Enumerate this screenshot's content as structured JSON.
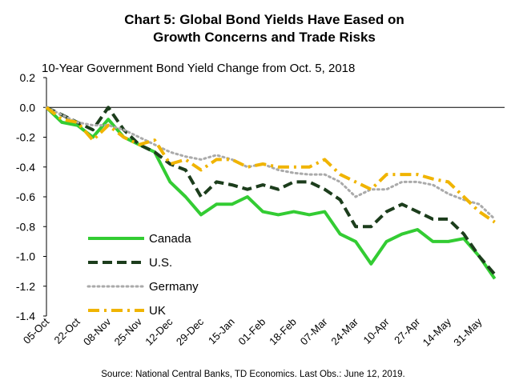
{
  "chart_data": {
    "type": "line",
    "title": [
      "Chart 5: Global Bond Yields Have Eased on",
      "Growth Concerns and Trade Risks"
    ],
    "subtitle": "10-Year Government Bond Yield Change from Oct. 5, 2018",
    "source": "Source: National Central Banks, TD Economics. Last Obs.: June 12, 2019.",
    "categories": [
      "05-Oct",
      null,
      "22-Oct",
      null,
      "08-Nov",
      null,
      "25-Nov",
      null,
      "12-Dec",
      null,
      "29-Dec",
      null,
      "15-Jan",
      null,
      "01-Feb",
      null,
      "18-Feb",
      null,
      "07-Mar",
      null,
      "24-Mar",
      null,
      "10-Apr",
      null,
      "27-Apr",
      null,
      "14-May",
      null,
      "31-May",
      null
    ],
    "ylim": [
      -1.4,
      0.2
    ],
    "yticks": [
      0.2,
      {
        "value": 0,
        "label": "0.0"
      },
      -0.2,
      -0.4,
      -0.6,
      -0.8,
      {
        "value": -1,
        "label": "-1.0"
      },
      -1.2,
      -1.4
    ],
    "legend": "lower left",
    "series": [
      {
        "name": "Canada",
        "color": "#33cc33",
        "style": "solid",
        "values": [
          0,
          -0.1,
          -0.12,
          -0.2,
          -0.08,
          -0.2,
          -0.25,
          -0.3,
          -0.5,
          -0.6,
          -0.72,
          -0.65,
          -0.65,
          -0.6,
          -0.7,
          -0.72,
          -0.7,
          -0.72,
          -0.7,
          -0.85,
          -0.9,
          -1.05,
          -0.9,
          -0.85,
          -0.82,
          -0.9,
          -0.9,
          -0.88,
          -1.0,
          -1.15
        ]
      },
      {
        "name": "U.S.",
        "color": "#1c3d1c",
        "style": "dashed",
        "values": [
          0,
          -0.05,
          -0.1,
          -0.15,
          0,
          -0.15,
          -0.25,
          -0.3,
          -0.38,
          -0.42,
          -0.6,
          -0.5,
          -0.52,
          -0.55,
          -0.52,
          -0.55,
          -0.5,
          -0.5,
          -0.55,
          -0.62,
          -0.8,
          -0.8,
          -0.7,
          -0.65,
          -0.7,
          -0.75,
          -0.75,
          -0.85,
          -1.0,
          -1.12
        ]
      },
      {
        "name": "Germany",
        "color": "#aaaaaa",
        "style": "dotted",
        "values": [
          0,
          -0.05,
          -0.1,
          -0.12,
          -0.12,
          -0.15,
          -0.2,
          -0.25,
          -0.3,
          -0.33,
          -0.35,
          -0.32,
          -0.35,
          -0.4,
          -0.38,
          -0.42,
          -0.44,
          -0.45,
          -0.45,
          -0.5,
          -0.6,
          -0.55,
          -0.55,
          -0.5,
          -0.5,
          -0.52,
          -0.58,
          -0.62,
          -0.65,
          -0.75
        ]
      },
      {
        "name": "UK",
        "color": "#f0b400",
        "style": "dashdot",
        "values": [
          0,
          -0.08,
          -0.1,
          -0.22,
          -0.12,
          -0.2,
          -0.25,
          -0.22,
          -0.38,
          -0.35,
          -0.42,
          -0.35,
          -0.35,
          -0.4,
          -0.38,
          -0.4,
          -0.4,
          -0.4,
          -0.35,
          -0.45,
          -0.5,
          -0.55,
          -0.45,
          -0.45,
          -0.45,
          -0.48,
          -0.5,
          -0.6,
          -0.7,
          -0.77
        ]
      }
    ]
  }
}
